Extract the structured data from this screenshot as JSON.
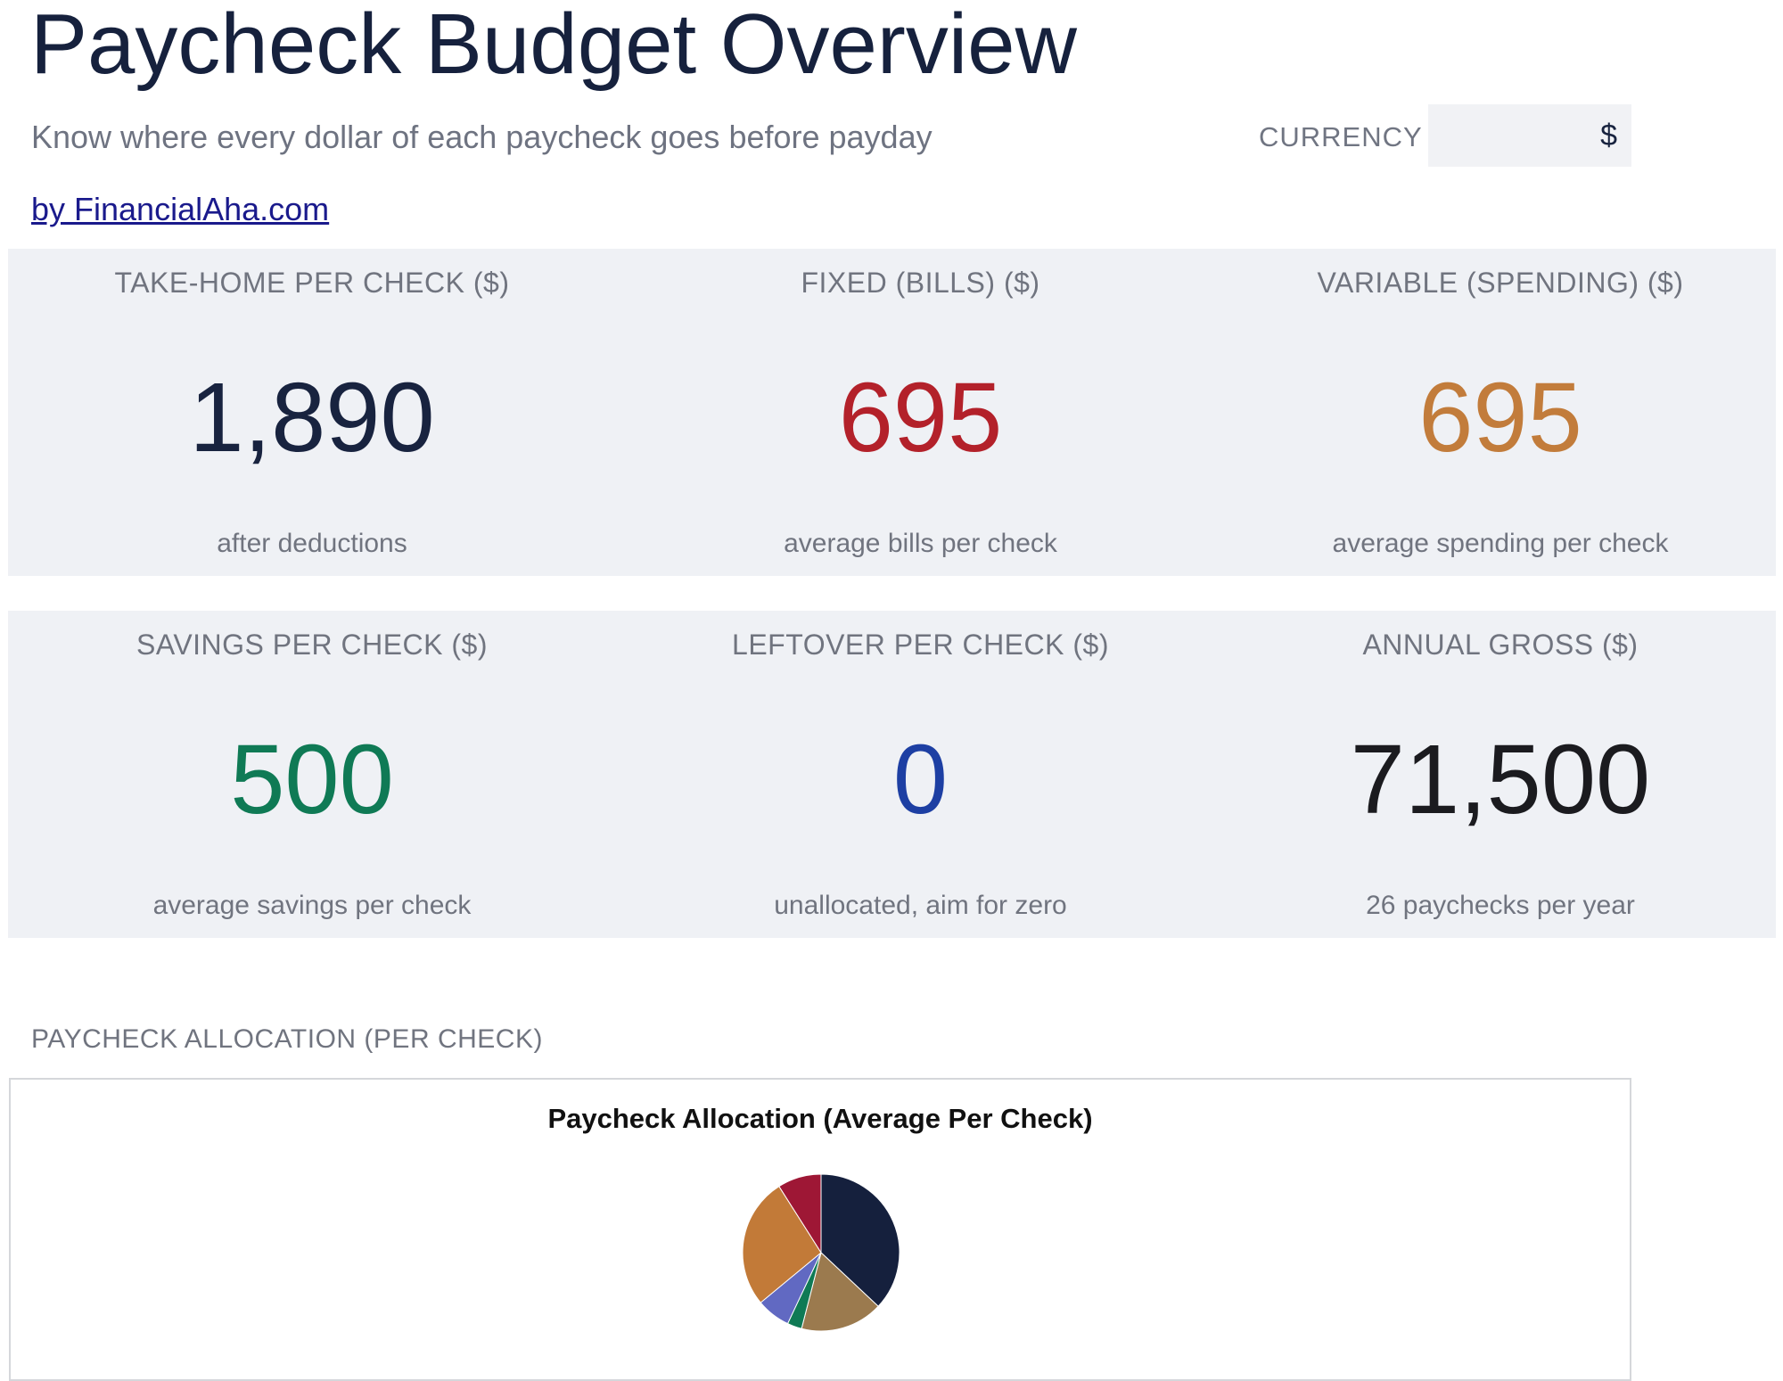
{
  "header": {
    "title": "Paycheck Budget Overview",
    "subtitle": "Know where every dollar of each paycheck goes before payday",
    "byline": "by FinancialAha.com",
    "currency_label": "CURRENCY",
    "currency_value": "$"
  },
  "kpis_row1": [
    {
      "label": "TAKE-HOME PER CHECK ($)",
      "value": "1,890",
      "note": "after deductions",
      "color": "#18233f"
    },
    {
      "label": "FIXED (BILLS) ($)",
      "value": "695",
      "note": "average bills per check",
      "color": "#b3212a"
    },
    {
      "label": "VARIABLE (SPENDING) ($)",
      "value": "695",
      "note": "average spending per check",
      "color": "#c27c3b"
    }
  ],
  "kpis_row2": [
    {
      "label": "SAVINGS PER CHECK ($)",
      "value": "500",
      "note": "average savings per check",
      "color": "#0f7a55"
    },
    {
      "label": "LEFTOVER PER CHECK ($)",
      "value": "0",
      "note": "unallocated, aim for zero",
      "color": "#1d3fa3"
    },
    {
      "label": "ANNUAL GROSS ($)",
      "value": "71,500",
      "note": "26 paychecks per year",
      "color": "#1b1b1f"
    }
  ],
  "section_title": "PAYCHECK ALLOCATION (PER CHECK)",
  "chart_data": {
    "type": "pie",
    "title": "Paycheck Allocation (Average Per Check)",
    "legend": "none",
    "slices": [
      {
        "value": 37,
        "color": "#15203d"
      },
      {
        "value": 17,
        "color": "#9b7a4e"
      },
      {
        "value": 3,
        "color": "#0f7a55"
      },
      {
        "value": 7,
        "color": "#6169c2"
      },
      {
        "value": 27,
        "color": "#c27a38"
      },
      {
        "value": 9,
        "color": "#9e1735"
      }
    ]
  }
}
